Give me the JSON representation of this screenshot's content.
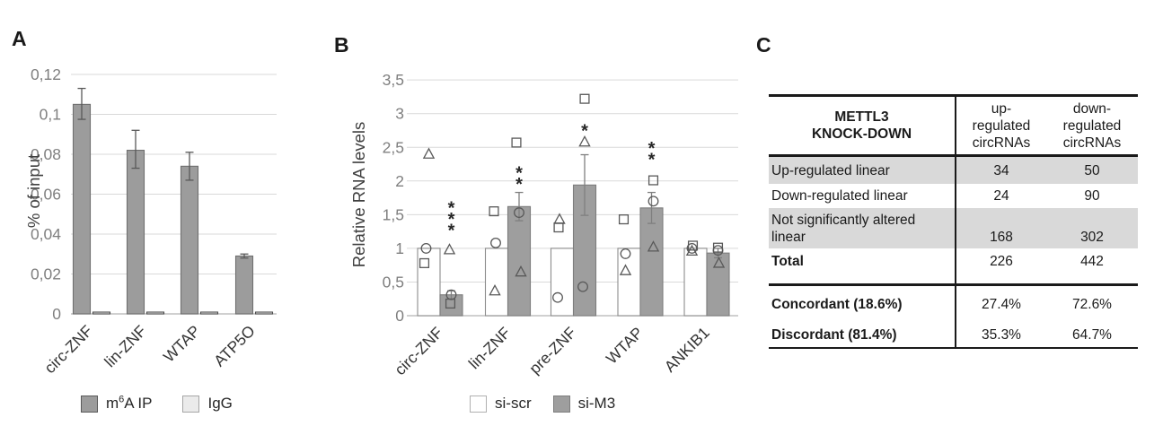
{
  "panels": {
    "a_label": "A",
    "b_label": "B",
    "c_label": "C"
  },
  "chart_data": [
    {
      "type": "bar",
      "panel": "A",
      "title": "",
      "xlabel": "",
      "ylabel": "% of input",
      "ylim": [
        0,
        0.12
      ],
      "grid": true,
      "legend_position": "bottom",
      "yticks": [
        {
          "v": 0,
          "label": "0"
        },
        {
          "v": 0.02,
          "label": "0,02"
        },
        {
          "v": 0.04,
          "label": "0,04"
        },
        {
          "v": 0.06,
          "label": "0,06"
        },
        {
          "v": 0.08,
          "label": "0,08"
        },
        {
          "v": 0.1,
          "label": "0,1"
        },
        {
          "v": 0.12,
          "label": "0,12"
        }
      ],
      "categories": [
        "circ-ZNF",
        "lin-ZNF",
        "WTAP",
        "ATP5O"
      ],
      "series": [
        {
          "name": "m6A IP",
          "fill": "#9c9c9c",
          "border": "#6f6f6f",
          "values": [
            0.105,
            0.082,
            0.074,
            0.029
          ],
          "err_plus": [
            0.008,
            0.01,
            0.007,
            0.001
          ],
          "err_minus": [
            0.0075,
            0.009,
            0.007,
            0.001
          ]
        },
        {
          "name": "IgG",
          "fill": "#e8e8e8",
          "border": "#4d4d4d",
          "values": [
            0.0006,
            0.0006,
            0.0006,
            0.0006
          ]
        }
      ],
      "legend": [
        {
          "label": "m6A IP",
          "label_parts": {
            "pre": "m",
            "sup": "6",
            "post": "A IP"
          },
          "fill": "#9c9c9c",
          "border": "#595959"
        },
        {
          "label": "IgG",
          "label_parts": {
            "pre": "IgG",
            "sup": "",
            "post": ""
          },
          "fill": "#ebebeb",
          "border": "#a6a6a6"
        }
      ]
    },
    {
      "type": "bar",
      "panel": "B",
      "title": "",
      "xlabel": "",
      "ylabel": "Relative RNA levels",
      "ylim": [
        0,
        3.5
      ],
      "grid": true,
      "legend_position": "bottom",
      "yticks": [
        {
          "v": 0,
          "label": "0"
        },
        {
          "v": 0.5,
          "label": "0,5"
        },
        {
          "v": 1,
          "label": "1"
        },
        {
          "v": 1.5,
          "label": "1,5"
        },
        {
          "v": 2,
          "label": "2"
        },
        {
          "v": 2.5,
          "label": "2,5"
        },
        {
          "v": 3,
          "label": "3"
        },
        {
          "v": 3.5,
          "label": "3,5"
        }
      ],
      "categories": [
        "circ-ZNF",
        "lin-ZNF",
        "pre-ZNF",
        "WTAP",
        "ANKIB1"
      ],
      "series": [
        {
          "name": "si-scr",
          "fill": "#ffffff",
          "border": "#8c8c8c",
          "values": [
            1,
            1,
            1,
            1,
            1
          ]
        },
        {
          "name": "si-M3",
          "fill": "#9e9e9e",
          "border": "#7d7d7d",
          "values": [
            0.31,
            1.62,
            1.94,
            1.6,
            0.93
          ],
          "err_plus": [
            0.06,
            0.21,
            0.45,
            0.23,
            0.07
          ],
          "err_minus": [
            0.06,
            0.21,
            0.45,
            0.23,
            0.07
          ]
        }
      ],
      "points": [
        {
          "cat": 0,
          "series": 0,
          "marker": "circle",
          "v": 1.0,
          "dx": -3
        },
        {
          "cat": 0,
          "series": 0,
          "marker": "square",
          "v": 0.78,
          "dx": -5
        },
        {
          "cat": 0,
          "series": 0,
          "marker": "triangle",
          "v": 2.4,
          "dx": 0
        },
        {
          "cat": 0,
          "series": 1,
          "marker": "triangle",
          "v": 0.98,
          "dx": -2
        },
        {
          "cat": 0,
          "series": 1,
          "marker": "circle",
          "v": 0.31,
          "dx": 0
        },
        {
          "cat": 0,
          "series": 1,
          "marker": "square",
          "v": 0.18,
          "dx": -1
        },
        {
          "cat": 1,
          "series": 0,
          "marker": "square",
          "v": 1.55,
          "dx": -3
        },
        {
          "cat": 1,
          "series": 0,
          "marker": "circle",
          "v": 1.08,
          "dx": -1
        },
        {
          "cat": 1,
          "series": 0,
          "marker": "triangle",
          "v": 0.37,
          "dx": -2
        },
        {
          "cat": 1,
          "series": 1,
          "marker": "square",
          "v": 2.57,
          "dx": -3
        },
        {
          "cat": 1,
          "series": 1,
          "marker": "circle",
          "v": 1.53,
          "dx": 0
        },
        {
          "cat": 1,
          "series": 1,
          "marker": "triangle",
          "v": 0.65,
          "dx": 2
        },
        {
          "cat": 2,
          "series": 0,
          "marker": "triangle",
          "v": 1.43,
          "dx": -3
        },
        {
          "cat": 2,
          "series": 0,
          "marker": "square",
          "v": 1.31,
          "dx": -4
        },
        {
          "cat": 2,
          "series": 0,
          "marker": "circle",
          "v": 0.27,
          "dx": -5
        },
        {
          "cat": 2,
          "series": 1,
          "marker": "square",
          "v": 3.22,
          "dx": 0
        },
        {
          "cat": 2,
          "series": 1,
          "marker": "triangle",
          "v": 2.58,
          "dx": 0
        },
        {
          "cat": 2,
          "series": 1,
          "marker": "circle",
          "v": 0.43,
          "dx": -2
        },
        {
          "cat": 3,
          "series": 0,
          "marker": "square",
          "v": 1.43,
          "dx": -6
        },
        {
          "cat": 3,
          "series": 0,
          "marker": "circle",
          "v": 0.92,
          "dx": -4
        },
        {
          "cat": 3,
          "series": 0,
          "marker": "triangle",
          "v": 0.67,
          "dx": -4
        },
        {
          "cat": 3,
          "series": 1,
          "marker": "square",
          "v": 2.01,
          "dx": 2
        },
        {
          "cat": 3,
          "series": 1,
          "marker": "circle",
          "v": 1.7,
          "dx": 2
        },
        {
          "cat": 3,
          "series": 1,
          "marker": "triangle",
          "v": 1.02,
          "dx": 2
        },
        {
          "cat": 4,
          "series": 0,
          "marker": "square",
          "v": 1.04,
          "dx": -3
        },
        {
          "cat": 4,
          "series": 0,
          "marker": "circle",
          "v": 1.0,
          "dx": -4
        },
        {
          "cat": 4,
          "series": 0,
          "marker": "triangle",
          "v": 0.96,
          "dx": -4
        },
        {
          "cat": 4,
          "series": 1,
          "marker": "square",
          "v": 1.01,
          "dx": 0
        },
        {
          "cat": 4,
          "series": 1,
          "marker": "circle",
          "v": 0.97,
          "dx": 0
        },
        {
          "cat": 4,
          "series": 1,
          "marker": "triangle",
          "v": 0.78,
          "dx": 1
        }
      ],
      "significance": [
        {
          "cat": "circ-ZNF",
          "stars": "***",
          "y_value": 1.66
        },
        {
          "cat": "lin-ZNF",
          "stars": "**",
          "y_value": 2.18
        },
        {
          "cat": "pre-ZNF",
          "stars": "*",
          "y_value": 2.8
        },
        {
          "cat": "WTAP",
          "stars": "**",
          "y_value": 2.54
        }
      ],
      "legend": [
        {
          "label": "si-scr",
          "label_parts": {
            "pre": "si-scr",
            "sup": "",
            "post": ""
          },
          "fill": "#ffffff",
          "border": "#b0b0b0"
        },
        {
          "label": "si-M3",
          "label_parts": {
            "pre": "si-M3",
            "sup": "",
            "post": ""
          },
          "fill": "#9e9e9e",
          "border": "#7d7d7d"
        }
      ]
    }
  ],
  "panel_c": {
    "shade_color": "#d9d9d9",
    "header": {
      "col0": "METTL3\nKNOCK-DOWN",
      "col1": "up-\nregulated\ncircRNAs",
      "col2": "down-\nregulated\ncircRNAs"
    },
    "rows": [
      {
        "label": "Up-regulated linear",
        "up": "34",
        "down": "50"
      },
      {
        "label": "Down-regulated linear",
        "up": "24",
        "down": "90"
      },
      {
        "label": "Not significantly altered\nlinear",
        "up": "168",
        "down": "302"
      },
      {
        "label": "Total",
        "up": "226",
        "down": "442"
      }
    ],
    "footer_rows": [
      {
        "label": "Concordant (18.6%)",
        "up": "27.4%",
        "down": "72.6%"
      },
      {
        "label": "Discordant (81.4%)",
        "up": "35.3%",
        "down": "64.7%"
      }
    ]
  }
}
